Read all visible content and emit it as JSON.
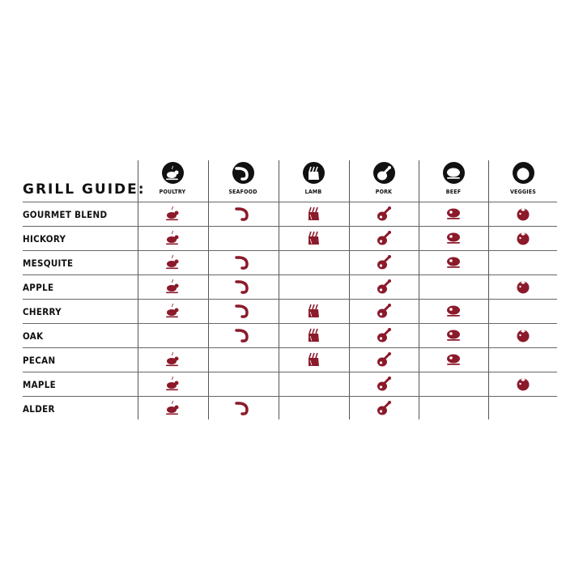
{
  "title": "GRILL GUIDE:",
  "accent_color": "#8b1a2b",
  "columns": [
    {
      "label": "POULTRY",
      "icon": "poultry-icon"
    },
    {
      "label": "SEAFOOD",
      "icon": "shrimp-icon"
    },
    {
      "label": "LAMB",
      "icon": "lamb-rack-icon"
    },
    {
      "label": "PORK",
      "icon": "ham-icon"
    },
    {
      "label": "BEEF",
      "icon": "steak-icon"
    },
    {
      "label": "VEGGIES",
      "icon": "tomato-icon"
    }
  ],
  "rows": [
    {
      "label": "GOURMET BLEND",
      "pairs": [
        true,
        true,
        true,
        true,
        true,
        true
      ]
    },
    {
      "label": "HICKORY",
      "pairs": [
        true,
        false,
        true,
        true,
        true,
        true
      ]
    },
    {
      "label": "MESQUITE",
      "pairs": [
        true,
        true,
        false,
        true,
        true,
        false
      ]
    },
    {
      "label": "APPLE",
      "pairs": [
        true,
        true,
        false,
        true,
        false,
        true
      ]
    },
    {
      "label": "CHERRY",
      "pairs": [
        true,
        true,
        true,
        true,
        true,
        false
      ]
    },
    {
      "label": "OAK",
      "pairs": [
        false,
        true,
        true,
        true,
        true,
        true
      ]
    },
    {
      "label": "PECAN",
      "pairs": [
        true,
        false,
        true,
        true,
        true,
        false
      ]
    },
    {
      "label": "MAPLE",
      "pairs": [
        true,
        false,
        false,
        true,
        false,
        true
      ]
    },
    {
      "label": "ALDER",
      "pairs": [
        true,
        true,
        false,
        true,
        false,
        false
      ]
    }
  ]
}
